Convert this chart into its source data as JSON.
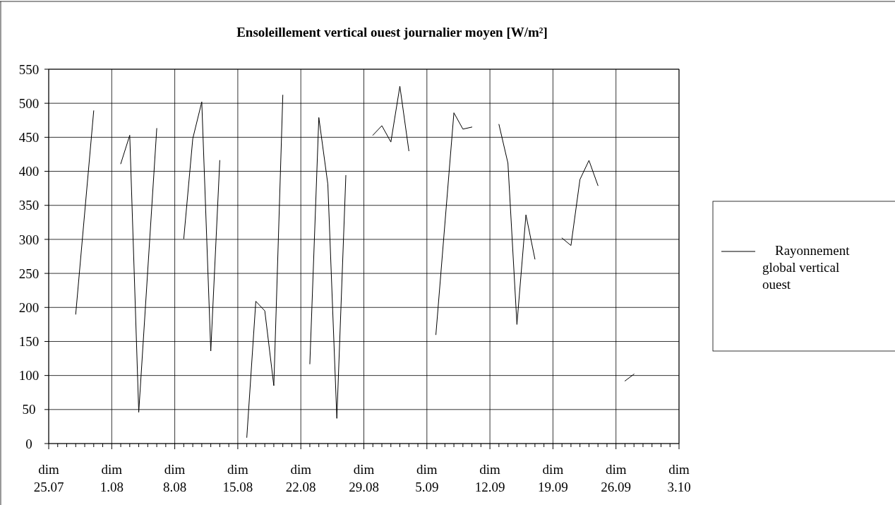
{
  "chart_data": {
    "type": "line",
    "title": "Ensoleillement vertical ouest journalier moyen  [W/m²]",
    "x": [
      "--07-28",
      "--07-30",
      "--07-31",
      "--08-02",
      "--08-03",
      "--08-04",
      "--08-06",
      "--08-07",
      "--08-09",
      "--08-10",
      "--08-11",
      "--08-12",
      "--08-13",
      "--08-14",
      "--08-16",
      "--08-17",
      "--08-18",
      "--08-19",
      "--08-20",
      "--08-21",
      "--08-23",
      "--08-24",
      "--08-25",
      "--08-26",
      "--08-27",
      "--08-28",
      "--08-30",
      "--08-31",
      "--09-01",
      "--09-02",
      "--09-03",
      "--09-04",
      "--09-06",
      "--09-08",
      "--09-09",
      "--09-10",
      "--09-11",
      "--09-13",
      "--09-14",
      "--09-15",
      "--09-16",
      "--09-17",
      "--09-18",
      "--09-20",
      "--09-21",
      "--09-22",
      "--09-23",
      "--09-24",
      "--09-25",
      "--09-27",
      "--09-28"
    ],
    "series": [
      {
        "name": "Rayonnement global vertical ouest",
        "color": "#000000",
        "values": [
          190,
          489,
          null,
          411,
          453,
          46,
          463,
          null,
          301,
          448,
          502,
          136,
          416,
          null,
          9,
          209,
          195,
          85,
          512,
          null,
          117,
          479,
          381,
          37,
          394,
          null,
          453,
          467,
          443,
          525,
          430,
          null,
          160,
          486,
          462,
          465,
          null,
          469,
          412,
          175,
          336,
          271,
          null,
          302,
          291,
          388,
          416,
          379,
          null,
          92,
          102
        ]
      }
    ],
    "xlim": [
      "--07-25",
      "--10-03"
    ],
    "xticks": [
      {
        "value": "--07-25",
        "label": "dim 25.07"
      },
      {
        "value": "--07-26",
        "label": null
      },
      {
        "value": "--07-27",
        "label": null
      },
      {
        "value": "--07-28",
        "label": null
      },
      {
        "value": "--07-29",
        "label": null
      },
      {
        "value": "--07-30",
        "label": null
      },
      {
        "value": "--07-31",
        "label": null
      },
      {
        "value": "--08-01",
        "label": "dim 1.08"
      },
      {
        "value": "--08-02",
        "label": null
      },
      {
        "value": "--08-03",
        "label": null
      },
      {
        "value": "--08-04",
        "label": null
      },
      {
        "value": "--08-05",
        "label": null
      },
      {
        "value": "--08-06",
        "label": null
      },
      {
        "value": "--08-07",
        "label": null
      },
      {
        "value": "--08-08",
        "label": "dim 8.08"
      },
      {
        "value": "--08-09",
        "label": null
      },
      {
        "value": "--08-10",
        "label": null
      },
      {
        "value": "--08-11",
        "label": null
      },
      {
        "value": "--08-12",
        "label": null
      },
      {
        "value": "--08-13",
        "label": null
      },
      {
        "value": "--08-14",
        "label": null
      },
      {
        "value": "--08-15",
        "label": "dim 15.08"
      },
      {
        "value": "--08-16",
        "label": null
      },
      {
        "value": "--08-17",
        "label": null
      },
      {
        "value": "--08-18",
        "label": null
      },
      {
        "value": "--08-19",
        "label": null
      },
      {
        "value": "--08-20",
        "label": null
      },
      {
        "value": "--08-21",
        "label": null
      },
      {
        "value": "--08-22",
        "label": "dim 22.08"
      },
      {
        "value": "--08-23",
        "label": null
      },
      {
        "value": "--08-24",
        "label": null
      },
      {
        "value": "--08-25",
        "label": null
      },
      {
        "value": "--08-26",
        "label": null
      },
      {
        "value": "--08-27",
        "label": null
      },
      {
        "value": "--08-28",
        "label": null
      },
      {
        "value": "--08-29",
        "label": "dim 29.08"
      },
      {
        "value": "--08-30",
        "label": null
      },
      {
        "value": "--08-31",
        "label": null
      },
      {
        "value": "--09-01",
        "label": null
      },
      {
        "value": "--09-02",
        "label": null
      },
      {
        "value": "--09-03",
        "label": null
      },
      {
        "value": "--09-04",
        "label": null
      },
      {
        "value": "--09-05",
        "label": "dim 5.09"
      },
      {
        "value": "--09-06",
        "label": null
      },
      {
        "value": "--09-07",
        "label": null
      },
      {
        "value": "--09-08",
        "label": null
      },
      {
        "value": "--09-09",
        "label": null
      },
      {
        "value": "--09-10",
        "label": null
      },
      {
        "value": "--09-11",
        "label": null
      },
      {
        "value": "--09-12",
        "label": "dim 12.09"
      },
      {
        "value": "--09-13",
        "label": null
      },
      {
        "value": "--09-14",
        "label": null
      },
      {
        "value": "--09-15",
        "label": null
      },
      {
        "value": "--09-16",
        "label": null
      },
      {
        "value": "--09-17",
        "label": null
      },
      {
        "value": "--09-18",
        "label": null
      },
      {
        "value": "--09-19",
        "label": "dim 19.09"
      },
      {
        "value": "--09-20",
        "label": null
      },
      {
        "value": "--09-21",
        "label": null
      },
      {
        "value": "--09-22",
        "label": null
      },
      {
        "value": "--09-23",
        "label": null
      },
      {
        "value": "--09-24",
        "label": null
      },
      {
        "value": "--09-25",
        "label": null
      },
      {
        "value": "--09-26",
        "label": "dim 26.09"
      },
      {
        "value": "--09-27",
        "label": null
      },
      {
        "value": "--09-28",
        "label": null
      },
      {
        "value": "--09-29",
        "label": null
      },
      {
        "value": "--09-30",
        "label": null
      },
      {
        "value": "--10-01",
        "label": null
      },
      {
        "value": "--10-02",
        "label": null
      },
      {
        "value": "--10-03",
        "label": "dim 3.10"
      }
    ],
    "ylim": [
      0,
      550
    ],
    "yticks": [
      0,
      50,
      100,
      150,
      200,
      250,
      300,
      350,
      400,
      450,
      500,
      550
    ],
    "grid": true,
    "legend": "right"
  }
}
